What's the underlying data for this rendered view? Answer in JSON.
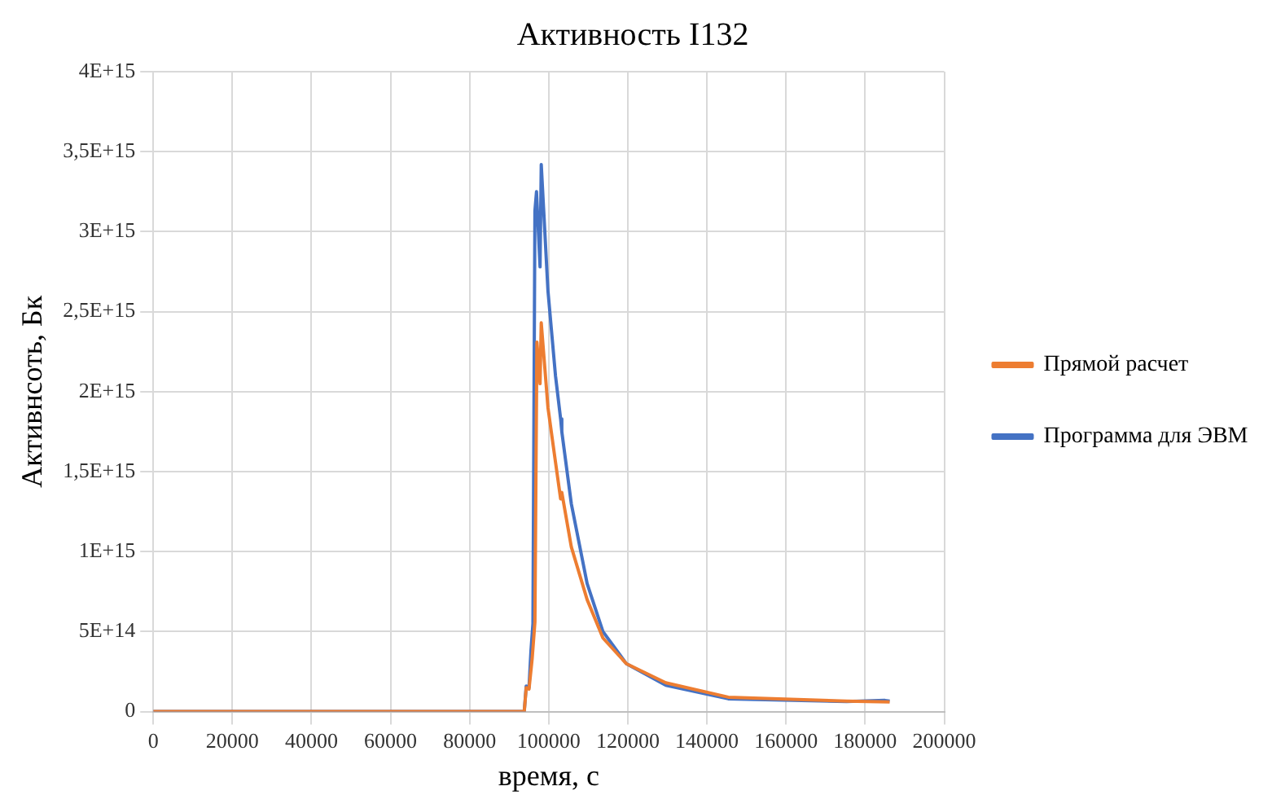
{
  "chart_data": {
    "type": "line",
    "title": "Активность I132",
    "xlabel": "время, с",
    "ylabel": "Активнсоть, Бк",
    "xlim": [
      0,
      200000
    ],
    "xticks": [
      0,
      20000,
      40000,
      60000,
      80000,
      100000,
      120000,
      140000,
      160000,
      180000,
      200000
    ],
    "ylim": [
      0,
      4000000000000000.0
    ],
    "yticks": [
      {
        "value": 0,
        "label": "0"
      },
      {
        "value": 500000000000000.0,
        "label": "5E+14"
      },
      {
        "value": 1000000000000000.0,
        "label": "1E+15"
      },
      {
        "value": 1500000000000000.0,
        "label": "1,5E+15"
      },
      {
        "value": 2000000000000000.0,
        "label": "2E+15"
      },
      {
        "value": 2500000000000000.0,
        "label": "2,5E+15"
      },
      {
        "value": 3000000000000000.0,
        "label": "3E+15"
      },
      {
        "value": 3500000000000000.0,
        "label": "3,5E+15"
      },
      {
        "value": 4000000000000000.0,
        "label": "4E+15"
      }
    ],
    "grid": true,
    "legend": "right",
    "marker": "none",
    "line_style": "solid",
    "series": [
      {
        "name": "Прямой расчет",
        "color": "#ed7d31",
        "x": [
          0,
          93800,
          94300,
          95000,
          95800,
          96500,
          97000,
          97800,
          98100,
          99800,
          101700,
          103000,
          103300,
          105700,
          109700,
          113700,
          119600,
          129600,
          145400,
          175300,
          186200
        ],
        "values": [
          0,
          0,
          150000000000000.0,
          140000000000000.0,
          330000000000000.0,
          560000000000000.0,
          2310000000000000.0,
          2050000000000000.0,
          2430000000000000.0,
          1900000000000000.0,
          1560000000000000.0,
          1330000000000000.0,
          1370000000000000.0,
          1030000000000000.0,
          700000000000000.0,
          460000000000000.0,
          300000000000000.0,
          180000000000000.0,
          90000000000000.0,
          65000000000000.0,
          60000000000000.0
        ]
      },
      {
        "name": "Программа для ЭВМ",
        "color": "#4472c4",
        "x": [
          0,
          93800,
          94300,
          95000,
          95500,
          96000,
          96500,
          96900,
          97800,
          98100,
          99800,
          101700,
          103000,
          103300,
          105700,
          109700,
          113700,
          119600,
          129600,
          145400,
          175300,
          185000,
          186200
        ],
        "values": [
          0,
          0,
          160000000000000.0,
          150000000000000.0,
          380000000000000.0,
          550000000000000.0,
          3130000000000000.0,
          3250000000000000.0,
          2780000000000000.0,
          3420000000000000.0,
          2630000000000000.0,
          2100000000000000.0,
          1830000000000000.0,
          1750000000000000.0,
          1300000000000000.0,
          800000000000000.0,
          500000000000000.0,
          300000000000000.0,
          165000000000000.0,
          80000000000000.0,
          63000000000000.0,
          70000000000000.0,
          65000000000000.0
        ]
      }
    ]
  }
}
